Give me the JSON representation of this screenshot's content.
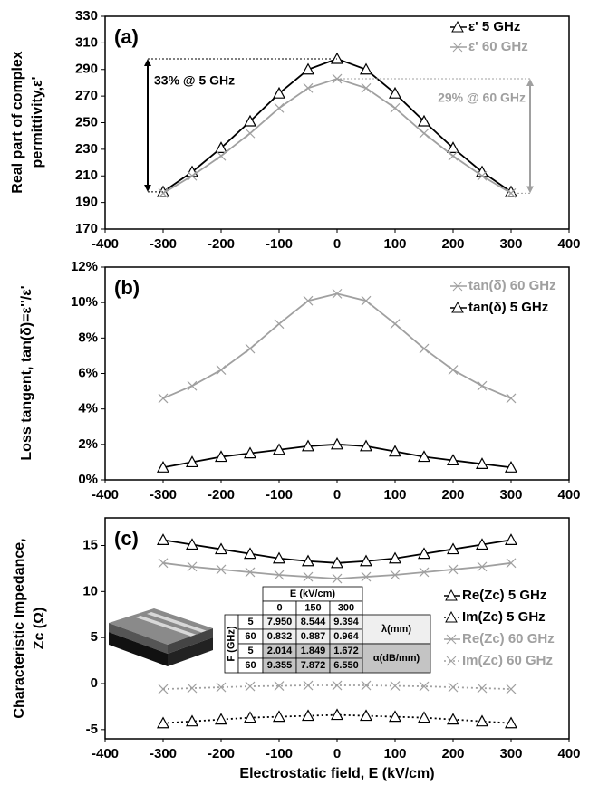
{
  "chart_data": [
    {
      "type": "line",
      "panel_label": "(a)",
      "y_title": [
        "Real part of complex",
        "permittivity,ε'"
      ],
      "x": [
        -300,
        -250,
        -200,
        -150,
        -100,
        -50,
        0,
        50,
        100,
        150,
        200,
        250,
        300
      ],
      "series": [
        {
          "name": "ε' 5 GHz",
          "color": "#000000",
          "marker": "triangle",
          "dash": false,
          "values": [
            198,
            213,
            231,
            251,
            272,
            290,
            298,
            290,
            272,
            251,
            231,
            213,
            198
          ]
        },
        {
          "name": "ε' 60 GHz",
          "color": "#a0a0a0",
          "marker": "x",
          "dash": false,
          "values": [
            197,
            210,
            225,
            242,
            261,
            276,
            283,
            276,
            261,
            242,
            225,
            210,
            197
          ]
        }
      ],
      "annotations": [
        "33% @ 5 GHz",
        "29% @ 60 GHz"
      ],
      "xlim": [
        -400,
        400
      ],
      "xticks": [
        -400,
        -300,
        -200,
        -100,
        0,
        100,
        200,
        300,
        400
      ],
      "ylim": [
        170,
        330
      ],
      "yticks": [
        170,
        190,
        210,
        230,
        250,
        270,
        290,
        310,
        330
      ],
      "legend": "upper right"
    },
    {
      "type": "line",
      "panel_label": "(b)",
      "y_title": [
        "Loss tangent, tan(δ)=ε''/ε'"
      ],
      "x": [
        -300,
        -250,
        -200,
        -150,
        -100,
        -50,
        0,
        50,
        100,
        150,
        200,
        250,
        300
      ],
      "series": [
        {
          "name": "tan(δ) 60 GHz",
          "color": "#a0a0a0",
          "marker": "x",
          "dash": false,
          "values": [
            4.6,
            5.3,
            6.2,
            7.4,
            8.8,
            10.1,
            10.5,
            10.1,
            8.8,
            7.4,
            6.2,
            5.3,
            4.6
          ]
        },
        {
          "name": "tan(δ) 5 GHz",
          "color": "#000000",
          "marker": "triangle",
          "dash": false,
          "values": [
            0.7,
            1.0,
            1.3,
            1.5,
            1.7,
            1.9,
            2.0,
            1.9,
            1.6,
            1.3,
            1.1,
            0.9,
            0.7
          ]
        }
      ],
      "xlim": [
        -400,
        400
      ],
      "xticks": [
        -400,
        -300,
        -200,
        -100,
        0,
        100,
        200,
        300,
        400
      ],
      "ylim": [
        0,
        12
      ],
      "yticks": [
        {
          "value": 0,
          "label": "0%"
        },
        {
          "value": 2,
          "label": "2%"
        },
        {
          "value": 4,
          "label": "4%"
        },
        {
          "value": 6,
          "label": "6%"
        },
        {
          "value": 8,
          "label": "8%"
        },
        {
          "value": 10,
          "label": "10%"
        },
        {
          "value": 12,
          "label": "12%"
        }
      ],
      "legend": "upper right"
    },
    {
      "type": "line",
      "panel_label": "(c)",
      "y_title": [
        "Characteristic Impedance,",
        "Zc (Ω)"
      ],
      "x_title": "Electrostatic field, E (kV/cm)",
      "x": [
        -300,
        -250,
        -200,
        -150,
        -100,
        -50,
        0,
        50,
        100,
        150,
        200,
        250,
        300
      ],
      "series": [
        {
          "name": "Re(Zc)  5 GHz",
          "color": "#000000",
          "marker": "triangle",
          "dash": false,
          "values": [
            15.6,
            15.1,
            14.6,
            14.1,
            13.6,
            13.3,
            13.1,
            13.3,
            13.6,
            14.1,
            14.6,
            15.1,
            15.6
          ]
        },
        {
          "name": "Im(Zc)  5 GHz",
          "color": "#000000",
          "marker": "triangle",
          "dash": true,
          "values": [
            -4.3,
            -4.1,
            -3.9,
            -3.7,
            -3.6,
            -3.5,
            -3.4,
            -3.5,
            -3.6,
            -3.7,
            -3.9,
            -4.1,
            -4.3
          ]
        },
        {
          "name": "Re(Zc)  60 GHz",
          "color": "#a0a0a0",
          "marker": "x",
          "dash": false,
          "values": [
            13.1,
            12.7,
            12.4,
            12.1,
            11.8,
            11.6,
            11.4,
            11.6,
            11.8,
            12.1,
            12.4,
            12.7,
            13.1
          ]
        },
        {
          "name": "Im(Zc)  60 GHz",
          "color": "#a0a0a0",
          "marker": "x",
          "dash": true,
          "values": [
            -0.6,
            -0.5,
            -0.4,
            -0.3,
            -0.25,
            -0.2,
            -0.2,
            -0.2,
            -0.25,
            -0.3,
            -0.4,
            -0.5,
            -0.6
          ]
        }
      ],
      "inset_table": {
        "header": "E (kV/cm)",
        "columns": [
          "0",
          "150",
          "300"
        ],
        "row_header": "F (GHz)",
        "rows": [
          [
            "5",
            "7.950",
            "8.544",
            "9.394"
          ],
          [
            "60",
            "0.832",
            "0.887",
            "0.964"
          ],
          [
            "5",
            "2.014",
            "1.849",
            "1.672"
          ],
          [
            "60",
            "9.355",
            "7.872",
            "6.550"
          ]
        ],
        "groups": [
          "λ(mm)",
          "α(dB/mm)"
        ]
      },
      "xlim": [
        -400,
        400
      ],
      "xticks": [
        -400,
        -300,
        -200,
        -100,
        0,
        100,
        200,
        300,
        400
      ],
      "ylim": [
        -6,
        18
      ],
      "yticks": [
        -5,
        0,
        5,
        10,
        15
      ],
      "legend": "center right"
    }
  ]
}
